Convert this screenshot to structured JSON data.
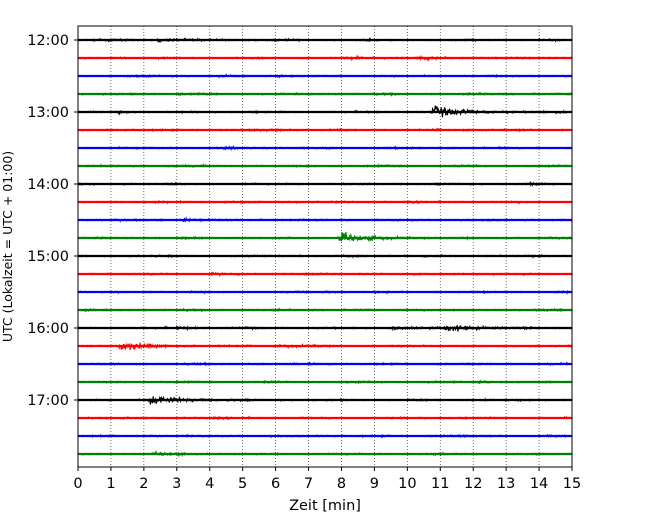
{
  "chart_data": {
    "type": "line",
    "title": "",
    "xlabel": "Zeit  [min]",
    "ylabel": "UTC (Lokalzeit = UTC + 01:00)",
    "xlim": [
      0,
      15
    ],
    "x_ticks": [
      "0",
      "1",
      "2",
      "3",
      "4",
      "5",
      "6",
      "7",
      "8",
      "9",
      "10",
      "11",
      "12",
      "13",
      "14",
      "15"
    ],
    "y_tick_labels": [
      "12:00",
      "13:00",
      "14:00",
      "15:00",
      "16:00",
      "17:00"
    ],
    "grid": {
      "x": true,
      "style": "dotted",
      "y": false
    },
    "trace_interval_min": 15,
    "trace_colors": [
      "#000000",
      "#ff0000",
      "#0000ff",
      "#008000"
    ],
    "traces": [
      {
        "start": "12:00",
        "events": [
          {
            "t": 2.4,
            "amp": 0.4
          },
          {
            "t": 0.9,
            "amp": 0.25
          },
          {
            "t": 4.0,
            "amp": 0.2
          }
        ]
      },
      {
        "start": "12:15",
        "events": [
          {
            "t": 10.3,
            "amp": 0.45
          },
          {
            "t": 8.3,
            "amp": 0.2
          }
        ]
      },
      {
        "start": "12:30",
        "events": [
          {
            "t": 6.1,
            "amp": 0.25
          }
        ]
      },
      {
        "start": "12:45",
        "events": [
          {
            "t": 3.1,
            "amp": 0.15
          }
        ]
      },
      {
        "start": "13:00",
        "events": [
          {
            "t": 10.8,
            "amp": 1.2
          },
          {
            "t": 1.2,
            "amp": 0.25
          },
          {
            "t": 14.6,
            "amp": 0.2
          }
        ]
      },
      {
        "start": "13:15",
        "events": [
          {
            "t": 5.6,
            "amp": 0.2
          }
        ]
      },
      {
        "start": "13:30",
        "events": [
          {
            "t": 4.5,
            "amp": 0.15
          }
        ]
      },
      {
        "start": "13:45",
        "events": [
          {
            "t": 2.8,
            "amp": 0.15
          }
        ]
      },
      {
        "start": "14:00",
        "events": [
          {
            "t": 13.6,
            "amp": 0.15
          }
        ]
      },
      {
        "start": "14:15",
        "events": [
          {
            "t": 1.9,
            "amp": 0.15
          }
        ]
      },
      {
        "start": "14:30",
        "events": [
          {
            "t": 3.2,
            "amp": 0.35
          }
        ]
      },
      {
        "start": "14:45",
        "events": [
          {
            "t": 8.0,
            "amp": 1.1
          }
        ]
      },
      {
        "start": "15:00",
        "events": [
          {
            "t": 9.0,
            "amp": 0.15
          }
        ]
      },
      {
        "start": "15:15",
        "events": [
          {
            "t": 4.0,
            "amp": 0.2
          }
        ]
      },
      {
        "start": "15:30",
        "events": [
          {
            "t": 7.5,
            "amp": 0.15
          }
        ]
      },
      {
        "start": "15:45",
        "events": [
          {
            "t": 10.0,
            "amp": 0.15
          }
        ]
      },
      {
        "start": "16:00",
        "events": [
          {
            "t": 11.2,
            "amp": 0.9
          },
          {
            "t": 3.0,
            "amp": 0.35
          },
          {
            "t": 9.5,
            "amp": 0.3
          }
        ]
      },
      {
        "start": "16:15",
        "events": [
          {
            "t": 1.3,
            "amp": 1.0
          },
          {
            "t": 6.2,
            "amp": 0.35
          }
        ]
      },
      {
        "start": "16:30",
        "events": [
          {
            "t": 7.0,
            "amp": 0.12
          }
        ]
      },
      {
        "start": "16:45",
        "events": [
          {
            "t": 12.2,
            "amp": 0.25
          }
        ]
      },
      {
        "start": "17:00",
        "events": [
          {
            "t": 2.2,
            "amp": 1.1
          }
        ]
      },
      {
        "start": "17:15",
        "events": [
          {
            "t": 5.0,
            "amp": 0.1
          }
        ]
      },
      {
        "start": "17:30",
        "events": [
          {
            "t": 11.0,
            "amp": 0.1
          }
        ]
      },
      {
        "start": "17:45",
        "events": [
          {
            "t": 2.4,
            "amp": 0.3
          }
        ]
      }
    ]
  }
}
